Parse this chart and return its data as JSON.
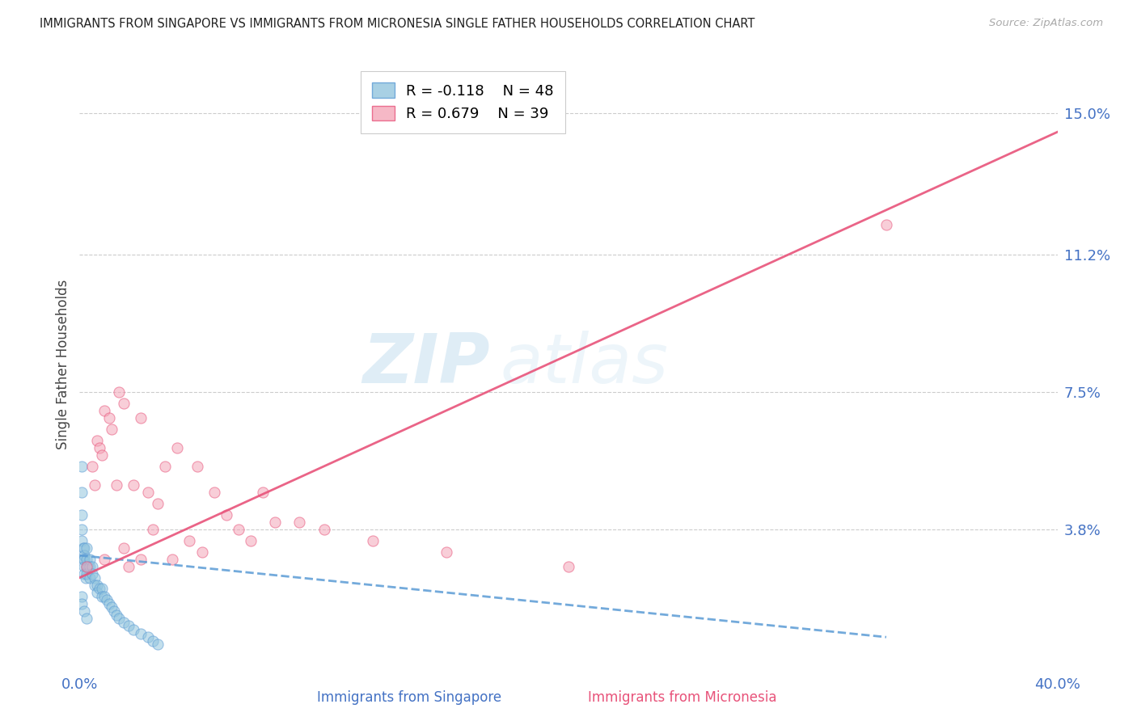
{
  "title": "IMMIGRANTS FROM SINGAPORE VS IMMIGRANTS FROM MICRONESIA SINGLE FATHER HOUSEHOLDS CORRELATION CHART",
  "source": "Source: ZipAtlas.com",
  "xlabel_singapore": "Immigrants from Singapore",
  "xlabel_micronesia": "Immigrants from Micronesia",
  "ylabel": "Single Father Households",
  "xlim": [
    0.0,
    0.4
  ],
  "ylim": [
    0.0,
    0.165
  ],
  "yticks": [
    0.038,
    0.075,
    0.112,
    0.15
  ],
  "ytick_labels": [
    "3.8%",
    "7.5%",
    "11.2%",
    "15.0%"
  ],
  "xticks": [
    0.0,
    0.4
  ],
  "xtick_labels": [
    "0.0%",
    "40.0%"
  ],
  "legend_r_singapore": "R = -0.118",
  "legend_n_singapore": "N = 48",
  "legend_r_micronesia": "R = 0.679",
  "legend_n_micronesia": "N = 39",
  "color_singapore": "#92c5de",
  "color_micronesia": "#f4a6b8",
  "color_singapore_line": "#5b9bd5",
  "color_micronesia_line": "#e8537a",
  "watermark_zip": "ZIP",
  "watermark_atlas": "atlas",
  "singapore_x": [
    0.001,
    0.001,
    0.001,
    0.001,
    0.001,
    0.0015,
    0.0015,
    0.002,
    0.002,
    0.002,
    0.002,
    0.002,
    0.0025,
    0.003,
    0.003,
    0.003,
    0.003,
    0.0035,
    0.004,
    0.004,
    0.004,
    0.005,
    0.005,
    0.006,
    0.006,
    0.007,
    0.007,
    0.008,
    0.009,
    0.009,
    0.01,
    0.011,
    0.012,
    0.013,
    0.014,
    0.015,
    0.016,
    0.018,
    0.02,
    0.022,
    0.025,
    0.028,
    0.03,
    0.032,
    0.001,
    0.001,
    0.002,
    0.003
  ],
  "singapore_y": [
    0.055,
    0.048,
    0.042,
    0.038,
    0.035,
    0.033,
    0.03,
    0.033,
    0.031,
    0.03,
    0.028,
    0.026,
    0.025,
    0.033,
    0.03,
    0.028,
    0.026,
    0.028,
    0.03,
    0.028,
    0.025,
    0.028,
    0.026,
    0.025,
    0.023,
    0.023,
    0.021,
    0.022,
    0.022,
    0.02,
    0.02,
    0.019,
    0.018,
    0.017,
    0.016,
    0.015,
    0.014,
    0.013,
    0.012,
    0.011,
    0.01,
    0.009,
    0.008,
    0.007,
    0.02,
    0.018,
    0.016,
    0.014
  ],
  "micronesia_x": [
    0.003,
    0.005,
    0.006,
    0.007,
    0.008,
    0.009,
    0.01,
    0.01,
    0.012,
    0.013,
    0.015,
    0.016,
    0.018,
    0.018,
    0.02,
    0.022,
    0.025,
    0.025,
    0.028,
    0.03,
    0.032,
    0.035,
    0.038,
    0.04,
    0.045,
    0.048,
    0.05,
    0.055,
    0.06,
    0.065,
    0.07,
    0.075,
    0.08,
    0.09,
    0.1,
    0.12,
    0.15,
    0.2,
    0.33
  ],
  "micronesia_y": [
    0.028,
    0.055,
    0.05,
    0.062,
    0.06,
    0.058,
    0.03,
    0.07,
    0.068,
    0.065,
    0.05,
    0.075,
    0.072,
    0.033,
    0.028,
    0.05,
    0.03,
    0.068,
    0.048,
    0.038,
    0.045,
    0.055,
    0.03,
    0.06,
    0.035,
    0.055,
    0.032,
    0.048,
    0.042,
    0.038,
    0.035,
    0.048,
    0.04,
    0.04,
    0.038,
    0.035,
    0.032,
    0.028,
    0.12
  ],
  "sg_line_x": [
    0.0,
    0.33
  ],
  "sg_line_y_start": 0.031,
  "sg_line_y_end": 0.009,
  "mic_line_x": [
    0.0,
    0.4
  ],
  "mic_line_y_start": 0.025,
  "mic_line_y_end": 0.145
}
